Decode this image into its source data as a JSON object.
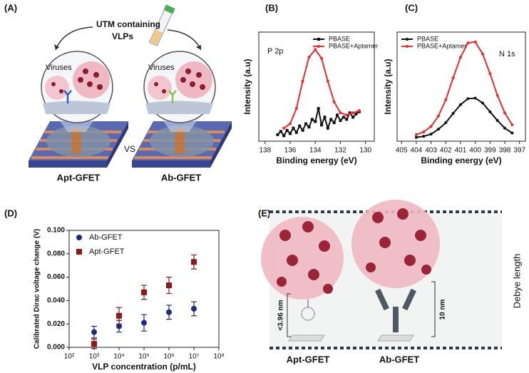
{
  "panels": {
    "a": "(A)",
    "b": "(B)",
    "c": "(C)",
    "d": "(D)",
    "e": "(E)"
  },
  "panel_a": {
    "title_line1": "UTM containing",
    "title_line2": "VLPs",
    "left_label": "Viruses",
    "right_label": "Viruses",
    "vs": "VS",
    "left_device": "Apt-GFET",
    "right_device": "Ab-GFET"
  },
  "panel_e": {
    "apt_size": "<3.96 nm",
    "ab_size": "10 nm",
    "debye": "Debye length",
    "left_device": "Apt-GFET",
    "right_device": "Ab-GFET"
  },
  "chart_data": [
    {
      "type": "line",
      "annotation": "P 2p",
      "xlabel": "Binding energy (eV)",
      "ylabel": "Intensity (a.u)",
      "xlim": [
        138.5,
        129.3
      ],
      "xticks": [
        138,
        136,
        134,
        132,
        130
      ],
      "ylim": [
        0,
        1
      ],
      "legend": "upper right",
      "series": [
        {
          "name": "PBASE",
          "color": "#111111",
          "marker": "square",
          "x": [
            137,
            136.75,
            136.5,
            136.25,
            136,
            135.75,
            135.5,
            135.25,
            135,
            134.75,
            134.5,
            134.25,
            134,
            133.75,
            133.5,
            133.25,
            133,
            132.75,
            132.5,
            132.25,
            132,
            131.75,
            131.5,
            131.25,
            131,
            130.75,
            130.5
          ],
          "values": [
            0.06,
            0.09,
            0.05,
            0.1,
            0.07,
            0.12,
            0.08,
            0.14,
            0.1,
            0.16,
            0.13,
            0.2,
            0.18,
            0.3,
            0.15,
            0.22,
            0.12,
            0.2,
            0.17,
            0.24,
            0.19,
            0.22,
            0.2,
            0.26,
            0.22,
            0.25,
            0.27
          ]
        },
        {
          "name": "PBASE+Aptamer",
          "color": "#ee2a2a",
          "marker": "circle",
          "x": [
            136.5,
            136,
            135.5,
            135,
            134.5,
            134,
            133.5,
            133,
            132.5,
            132,
            131.5,
            131,
            130.5
          ],
          "values": [
            0.12,
            0.16,
            0.3,
            0.55,
            0.77,
            0.84,
            0.76,
            0.55,
            0.36,
            0.26,
            0.24,
            0.26,
            0.28
          ]
        }
      ]
    },
    {
      "type": "line",
      "annotation": "N 1s",
      "xlabel": "Binding energy (eV)",
      "ylabel": "Intensity (a.u)",
      "xlim": [
        405.3,
        396.6
      ],
      "xticks": [
        405,
        404,
        403,
        402,
        401,
        400,
        399,
        398,
        397
      ],
      "ylim": [
        0,
        1
      ],
      "legend": "upper left",
      "series": [
        {
          "name": "PBASE",
          "color": "#111111",
          "marker": "circle",
          "x": [
            404,
            403.5,
            403,
            402.5,
            402,
            401.5,
            401,
            400.5,
            400,
            399.5,
            399,
            398.5,
            398,
            397.5
          ],
          "values": [
            0.035,
            0.045,
            0.065,
            0.11,
            0.17,
            0.255,
            0.335,
            0.39,
            0.395,
            0.35,
            0.27,
            0.19,
            0.12,
            0.075
          ]
        },
        {
          "name": "PBASE+Aptamer",
          "color": "#ee2a2a",
          "marker": "circle",
          "x": [
            404,
            403.5,
            403,
            402.5,
            402,
            401.5,
            401,
            400.5,
            400,
            399.5,
            399,
            398.5,
            398,
            397.5
          ],
          "values": [
            0.06,
            0.085,
            0.135,
            0.23,
            0.38,
            0.58,
            0.77,
            0.9,
            0.91,
            0.8,
            0.62,
            0.42,
            0.26,
            0.15
          ]
        }
      ]
    },
    {
      "type": "scatter",
      "xlabel": "VLP concentration (p/mL)",
      "ylabel": "Calibrated Dirac voltage change (V)",
      "xscale": "log",
      "xlim": [
        100,
        100000000
      ],
      "xticks": [
        {
          "value": 100,
          "label": "10²"
        },
        {
          "value": 1000,
          "label": "10³"
        },
        {
          "value": 10000,
          "label": "10⁴"
        },
        {
          "value": 100000,
          "label": "10⁵"
        },
        {
          "value": 1000000,
          "label": "10⁶"
        },
        {
          "value": 10000000,
          "label": "10⁷"
        },
        {
          "value": 100000000,
          "label": "10⁸"
        }
      ],
      "ylim": [
        0,
        0.1
      ],
      "yticks": [
        {
          "value": 0,
          "label": "0.000"
        },
        {
          "value": 0.02,
          "label": "0.020"
        },
        {
          "value": 0.04,
          "label": "0.040"
        },
        {
          "value": 0.06,
          "label": "0.060"
        },
        {
          "value": 0.08,
          "label": "0.080"
        },
        {
          "value": 0.1,
          "label": "0.100"
        }
      ],
      "legend": "upper left",
      "series": [
        {
          "name": "Ab-GFET",
          "color": "#1f2a7a",
          "marker": "circle",
          "x": [
            1000,
            10000,
            100000,
            1000000,
            10000000
          ],
          "values": [
            0.013,
            0.018,
            0.021,
            0.03,
            0.033
          ],
          "errors": [
            0.005,
            0.005,
            0.007,
            0.006,
            0.006
          ]
        },
        {
          "name": "Apt-GFET",
          "color": "#8b1a1a",
          "marker": "square",
          "x": [
            1000,
            10000,
            100000,
            1000000,
            10000000
          ],
          "values": [
            0.003,
            0.027,
            0.047,
            0.053,
            0.073
          ],
          "errors": [
            0.004,
            0.007,
            0.006,
            0.007,
            0.006
          ]
        }
      ]
    }
  ]
}
